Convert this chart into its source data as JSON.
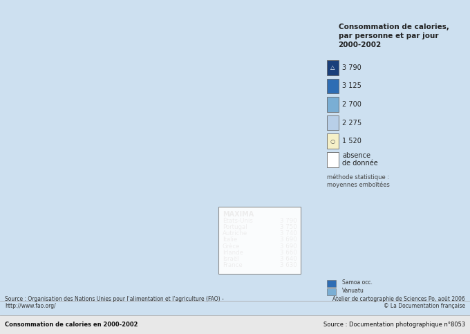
{
  "title": "Consommation de calories,\npar personne et par jour\n2000-2002",
  "background_color": "#d6e8f5",
  "legend_colors": {
    "3790": "#1a3f7a",
    "3125": "#2e6db4",
    "2700": "#7aaed4",
    "2275": "#b8cfe8",
    "1520_yellow": "#f5f0c8",
    "no_data": "#ffffff"
  },
  "legend_labels": [
    "3 790",
    "3 125",
    "2 700",
    "2 275",
    "1 520",
    "absence\nde donnée"
  ],
  "legend_note": "méthode statistique :\nmoyennes emboîtées",
  "samoa_label": "Samoa occ.",
  "vanuatu_label": "Vanuatu",
  "maxima_title": "MAXIMA",
  "maxima_entries": [
    [
      "États-Unis",
      "3 790"
    ],
    [
      "Portugal",
      "3 750"
    ],
    [
      "Autriche",
      "3 740"
    ],
    [
      "Italie",
      "3 690"
    ],
    [
      "Grèce",
      "3 690"
    ],
    [
      "Irlande",
      "3 660"
    ],
    [
      "Israël",
      "3 640"
    ],
    [
      "France",
      "3 630"
    ]
  ],
  "source_left_line1": "Source : Organisation des Nations Unies pour l'alimentation et l'agriculture (FAO) -",
  "source_left_line2": "http://www.fao.org/",
  "source_right_line1": "Atelier de cartographie de Sciences Po, août 2006",
  "source_right_line2": "© La Documentation française",
  "caption_left": "Consommation de calories en 2000-2002",
  "caption_right": "Source : Documentation photographique n°8053"
}
